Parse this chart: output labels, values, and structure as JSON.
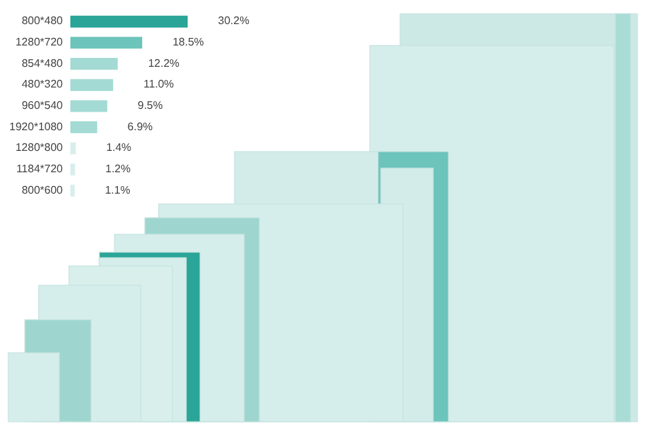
{
  "chart_data": {
    "type": "bar",
    "orientation": "horizontal",
    "categories": [
      "800*480",
      "1280*720",
      "854*480",
      "480*320",
      "960*540",
      "1920*1080",
      "1280*800",
      "1184*720",
      "800*600"
    ],
    "values": [
      30.2,
      18.5,
      12.2,
      11.0,
      9.5,
      6.9,
      1.4,
      1.2,
      1.1
    ],
    "colors": [
      "#2aa598",
      "#6cc4bb",
      "#a3dad4",
      "#a3dad4",
      "#a3dad4",
      "#a3dad4",
      "#d8eeec",
      "#d8eeec",
      "#d8eeec"
    ],
    "value_labels": [
      "30.2%",
      "18.5%",
      "12.2%",
      "11.0%",
      "9.5%",
      "6.9%",
      "1.4%",
      "1.2%",
      "1.1%"
    ]
  }
}
